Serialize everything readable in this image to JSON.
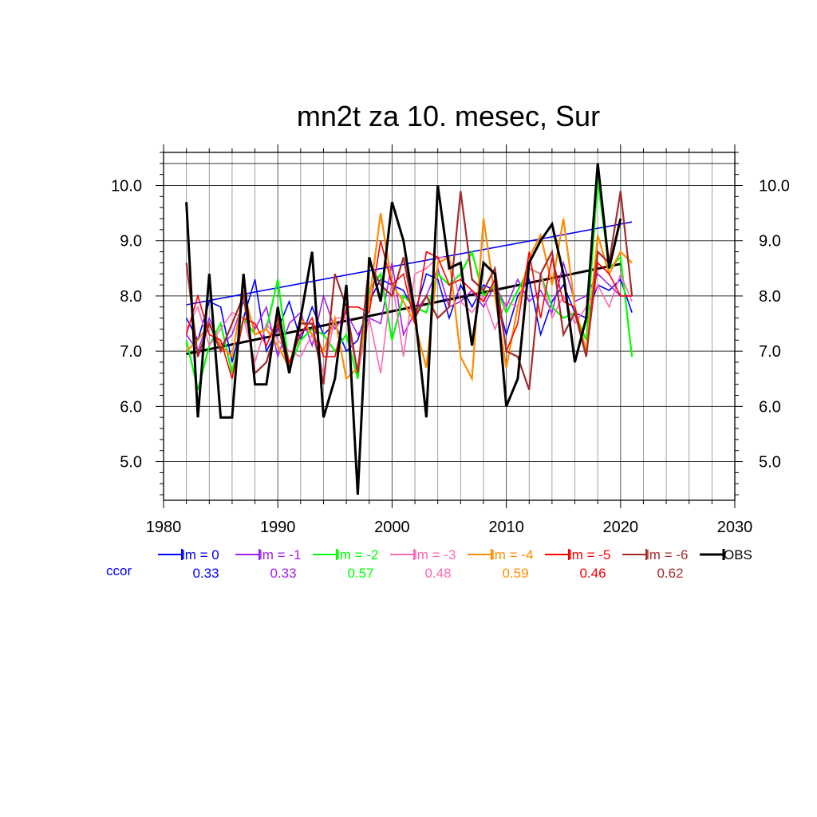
{
  "chart_data": {
    "type": "line",
    "title": "mn2t za 10. mesec, Sur",
    "xlabel": "",
    "ylabel": "",
    "xlim": [
      1980,
      2030
    ],
    "ylim": [
      4.3,
      10.6
    ],
    "x_ticks": [
      1980,
      1990,
      2000,
      2010,
      2020,
      2030
    ],
    "y_ticks": [
      5.0,
      6.0,
      7.0,
      8.0,
      9.0,
      10.0
    ],
    "y_tick_labels": [
      "5.0",
      "6.0",
      "7.0",
      "8.0",
      "9.0",
      "10.0"
    ],
    "grid": true,
    "x": [
      1982,
      1983,
      1984,
      1985,
      1986,
      1987,
      1988,
      1989,
      1990,
      1991,
      1992,
      1993,
      1994,
      1995,
      1996,
      1997,
      1998,
      1999,
      2000,
      2001,
      2002,
      2003,
      2004,
      2005,
      2006,
      2007,
      2008,
      2009,
      2010,
      2011,
      2012,
      2013,
      2014,
      2015,
      2016,
      2017,
      2018,
      2019,
      2020,
      2021
    ],
    "series": [
      {
        "name": "lm = 0",
        "color": "#0000ff",
        "width": 1.6,
        "values": [
          7.6,
          7.2,
          7.9,
          7.8,
          6.8,
          7.6,
          8.3,
          7.0,
          7.4,
          7.9,
          7.2,
          7.8,
          7.3,
          7.5,
          7.0,
          7.2,
          7.9,
          8.3,
          8.2,
          8.1,
          7.7,
          8.4,
          8.3,
          7.6,
          8.2,
          7.8,
          8.2,
          8.1,
          7.3,
          8.0,
          8.3,
          7.3,
          7.9,
          8.2,
          7.7,
          7.6,
          8.2,
          8.1,
          8.3,
          7.7
        ]
      },
      {
        "name": "lm = -1",
        "color": "#a020f0",
        "width": 1.6,
        "values": [
          7.3,
          7.0,
          7.6,
          7.1,
          7.3,
          7.9,
          7.4,
          7.8,
          6.9,
          7.5,
          7.7,
          7.1,
          8.0,
          7.4,
          7.7,
          7.3,
          7.6,
          7.5,
          8.6,
          7.3,
          7.7,
          8.0,
          8.5,
          7.8,
          7.9,
          8.1,
          7.8,
          8.2,
          7.8,
          8.3,
          7.9,
          8.1,
          7.7,
          8.6,
          7.9,
          8.0,
          8.4,
          8.2,
          8.0,
          8.0
        ]
      },
      {
        "name": "lm = -2",
        "color": "#00ff00",
        "width": 2.2,
        "values": [
          7.2,
          6.3,
          7.1,
          7.5,
          6.6,
          7.6,
          7.3,
          7.4,
          8.3,
          6.7,
          7.2,
          7.4,
          7.3,
          7.0,
          7.3,
          6.5,
          8.1,
          8.4,
          7.2,
          8.0,
          7.8,
          7.7,
          8.4,
          8.2,
          8.4,
          8.8,
          8.0,
          8.2,
          7.7,
          8.1,
          8.5,
          8.4,
          7.8,
          7.6,
          7.7,
          7.2,
          10.1,
          8.5,
          8.7,
          6.9
        ]
      },
      {
        "name": "lm = -3",
        "color": "#ff69b4",
        "width": 1.6,
        "values": [
          7.4,
          7.8,
          7.1,
          7.4,
          7.7,
          7.6,
          6.8,
          7.5,
          7.2,
          7.0,
          6.9,
          7.3,
          6.6,
          7.6,
          7.6,
          6.6,
          7.6,
          6.6,
          8.3,
          6.9,
          8.4,
          8.5,
          8.7,
          8.7,
          7.9,
          7.7,
          8.0,
          7.4,
          7.9,
          7.8,
          8.5,
          8.4,
          7.6,
          8.0,
          7.5,
          7.8,
          8.2,
          7.8,
          8.4,
          7.9
        ]
      },
      {
        "name": "lm = -4",
        "color": "#ff8c00",
        "width": 2.2,
        "values": [
          7.0,
          7.2,
          7.5,
          7.1,
          6.9,
          8.1,
          7.3,
          7.4,
          7.1,
          6.7,
          7.6,
          7.3,
          7.0,
          7.6,
          6.5,
          6.7,
          7.9,
          9.5,
          8.2,
          7.9,
          7.5,
          6.7,
          8.6,
          8.7,
          6.9,
          6.5,
          9.4,
          8.0,
          6.7,
          7.8,
          8.7,
          9.1,
          8.2,
          9.4,
          7.8,
          7.0,
          9.1,
          8.4,
          8.8,
          8.6
        ]
      },
      {
        "name": "lm = -5",
        "color": "#ff0000",
        "width": 1.6,
        "values": [
          7.3,
          8.0,
          7.3,
          7.2,
          6.5,
          7.6,
          7.5,
          7.1,
          7.6,
          6.8,
          7.3,
          7.6,
          6.9,
          6.9,
          7.8,
          7.8,
          7.7,
          9.0,
          8.2,
          8.4,
          7.5,
          8.8,
          8.7,
          8.2,
          8.3,
          8.1,
          7.9,
          8.3,
          7.0,
          7.5,
          8.8,
          7.6,
          8.7,
          7.9,
          7.8,
          6.9,
          8.6,
          8.4,
          8.0,
          8.0
        ]
      },
      {
        "name": "lm = -6",
        "color": "#a52a2a",
        "width": 2.2,
        "values": [
          8.6,
          6.9,
          7.5,
          7.0,
          7.5,
          8.0,
          6.6,
          6.8,
          7.5,
          6.6,
          7.5,
          7.5,
          6.4,
          8.4,
          7.8,
          6.6,
          8.6,
          8.2,
          8.0,
          8.7,
          7.6,
          8.0,
          7.6,
          7.8,
          9.9,
          8.3,
          8.1,
          8.5,
          7.0,
          6.9,
          6.3,
          8.4,
          8.8,
          7.3,
          7.7,
          6.9,
          8.8,
          8.6,
          9.9,
          8.0
        ]
      },
      {
        "name": "OBS",
        "color": "#000000",
        "width": 3,
        "values": [
          9.7,
          5.8,
          8.4,
          5.8,
          5.8,
          8.4,
          6.4,
          6.4,
          7.8,
          6.6,
          7.6,
          8.8,
          5.8,
          6.5,
          8.2,
          4.4,
          8.7,
          7.9,
          9.7,
          9.0,
          7.7,
          5.8,
          10.0,
          8.5,
          8.6,
          7.1,
          8.6,
          8.4,
          6.0,
          6.5,
          8.6,
          9.0,
          9.3,
          8.4,
          6.8,
          7.6,
          10.4,
          8.5,
          9.4,
          null
        ]
      }
    ],
    "trend_lines": [
      {
        "name": "lm = 0 trend",
        "color": "#0000ff",
        "width": 1.6,
        "x": [
          1982,
          2021
        ],
        "y": [
          7.84,
          9.34
        ]
      },
      {
        "name": "OBS trend",
        "color": "#000000",
        "width": 3,
        "x": [
          1982,
          2020
        ],
        "y": [
          6.95,
          8.58
        ]
      }
    ],
    "legend": {
      "placement": "bottom",
      "ccor_label": "ccor",
      "ccor_color": "#0000ff",
      "entries": [
        {
          "label": "lm = 0",
          "color": "#0000ff",
          "ccor": "0.33"
        },
        {
          "label": "lm = -1",
          "color": "#a020f0",
          "ccor": "0.33"
        },
        {
          "label": "lm = -2",
          "color": "#00ff00",
          "ccor": "0.57"
        },
        {
          "label": "lm = -3",
          "color": "#ff69b4",
          "ccor": "0.48"
        },
        {
          "label": "lm = -4",
          "color": "#ff8c00",
          "ccor": "0.59"
        },
        {
          "label": "lm = -5",
          "color": "#ff0000",
          "ccor": "0.46"
        },
        {
          "label": "lm = -6",
          "color": "#a52a2a",
          "ccor": "0.62"
        },
        {
          "label": "OBS",
          "color": "#000000",
          "ccor": ""
        }
      ]
    }
  }
}
